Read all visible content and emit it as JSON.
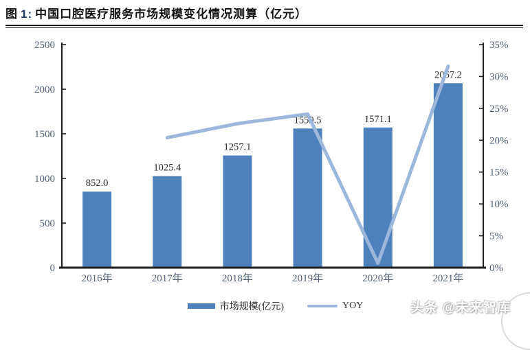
{
  "header": {
    "figure_label": "图",
    "figure_number": "1:",
    "title": "中国口腔医疗服务市场规模变化情况测算（亿元）"
  },
  "watermark": {
    "text": "头条 @未来智库"
  },
  "colors": {
    "bar": "#4E81BB",
    "line": "#9BB7DC",
    "axis": "#1F1F1F",
    "tick_label": "#52627A",
    "value_label": "#2B2B2B",
    "figure_number": "#1F3864"
  },
  "chart_data": {
    "type": "bar+line",
    "title": "中国口腔医疗服务市场规模变化情况测算（亿元）",
    "categories": [
      "2016年",
      "2017年",
      "2018年",
      "2019年",
      "2020年",
      "2021年"
    ],
    "series": [
      {
        "name": "市场规模(亿元)",
        "type": "bar",
        "axis": "left",
        "color": "#4E81BB",
        "values": [
          852.0,
          1025.4,
          1257.1,
          1559.5,
          1571.1,
          2067.2
        ],
        "labels": [
          "852.0",
          "1025.4",
          "1257.1",
          "1559.5",
          "1571.1",
          "2067.2"
        ]
      },
      {
        "name": "YOY",
        "type": "line",
        "axis": "right",
        "color": "#9BB7DC",
        "values": [
          null,
          20.4,
          22.6,
          24.1,
          0.7,
          31.6
        ]
      }
    ],
    "left_axis": {
      "min": 0,
      "max": 2500,
      "step": 500,
      "ticks": [
        "0",
        "500",
        "1000",
        "1500",
        "2000",
        "2500"
      ]
    },
    "right_axis": {
      "min": 0,
      "max": 35,
      "step": 5,
      "ticks": [
        "0%",
        "5%",
        "10%",
        "15%",
        "20%",
        "25%",
        "30%",
        "35%"
      ]
    },
    "grid": false,
    "legend_position": "bottom",
    "legend": [
      {
        "label": "市场规模(亿元)",
        "type": "bar"
      },
      {
        "label": "YOY",
        "type": "line"
      }
    ]
  }
}
